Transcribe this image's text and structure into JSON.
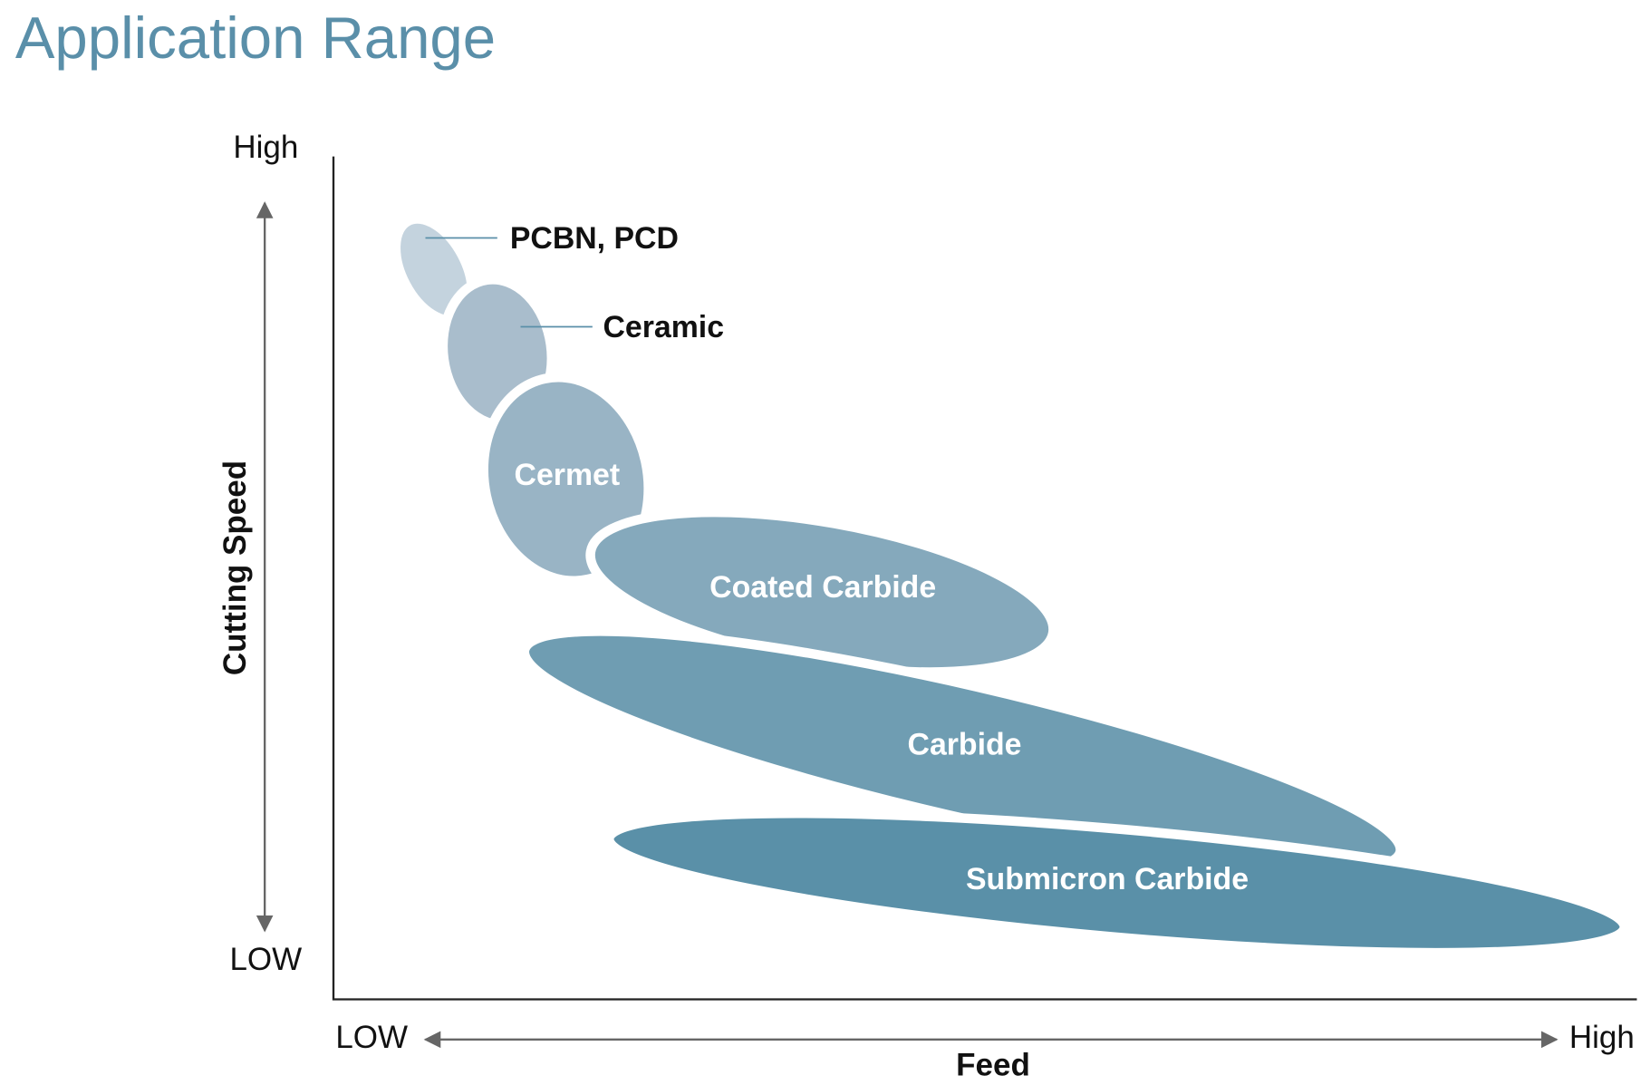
{
  "title": "Application Range",
  "y_axis": {
    "label": "Cutting Speed",
    "high": "High",
    "low": "LOW"
  },
  "x_axis": {
    "label": "Feed",
    "low": "LOW",
    "high": "High"
  },
  "regions": [
    {
      "label": "PCBN, PCD"
    },
    {
      "label": "Ceramic"
    },
    {
      "label": "Cermet"
    },
    {
      "label": "Coated Carbide"
    },
    {
      "label": "Carbide"
    },
    {
      "label": "Submicron Carbide"
    }
  ]
}
